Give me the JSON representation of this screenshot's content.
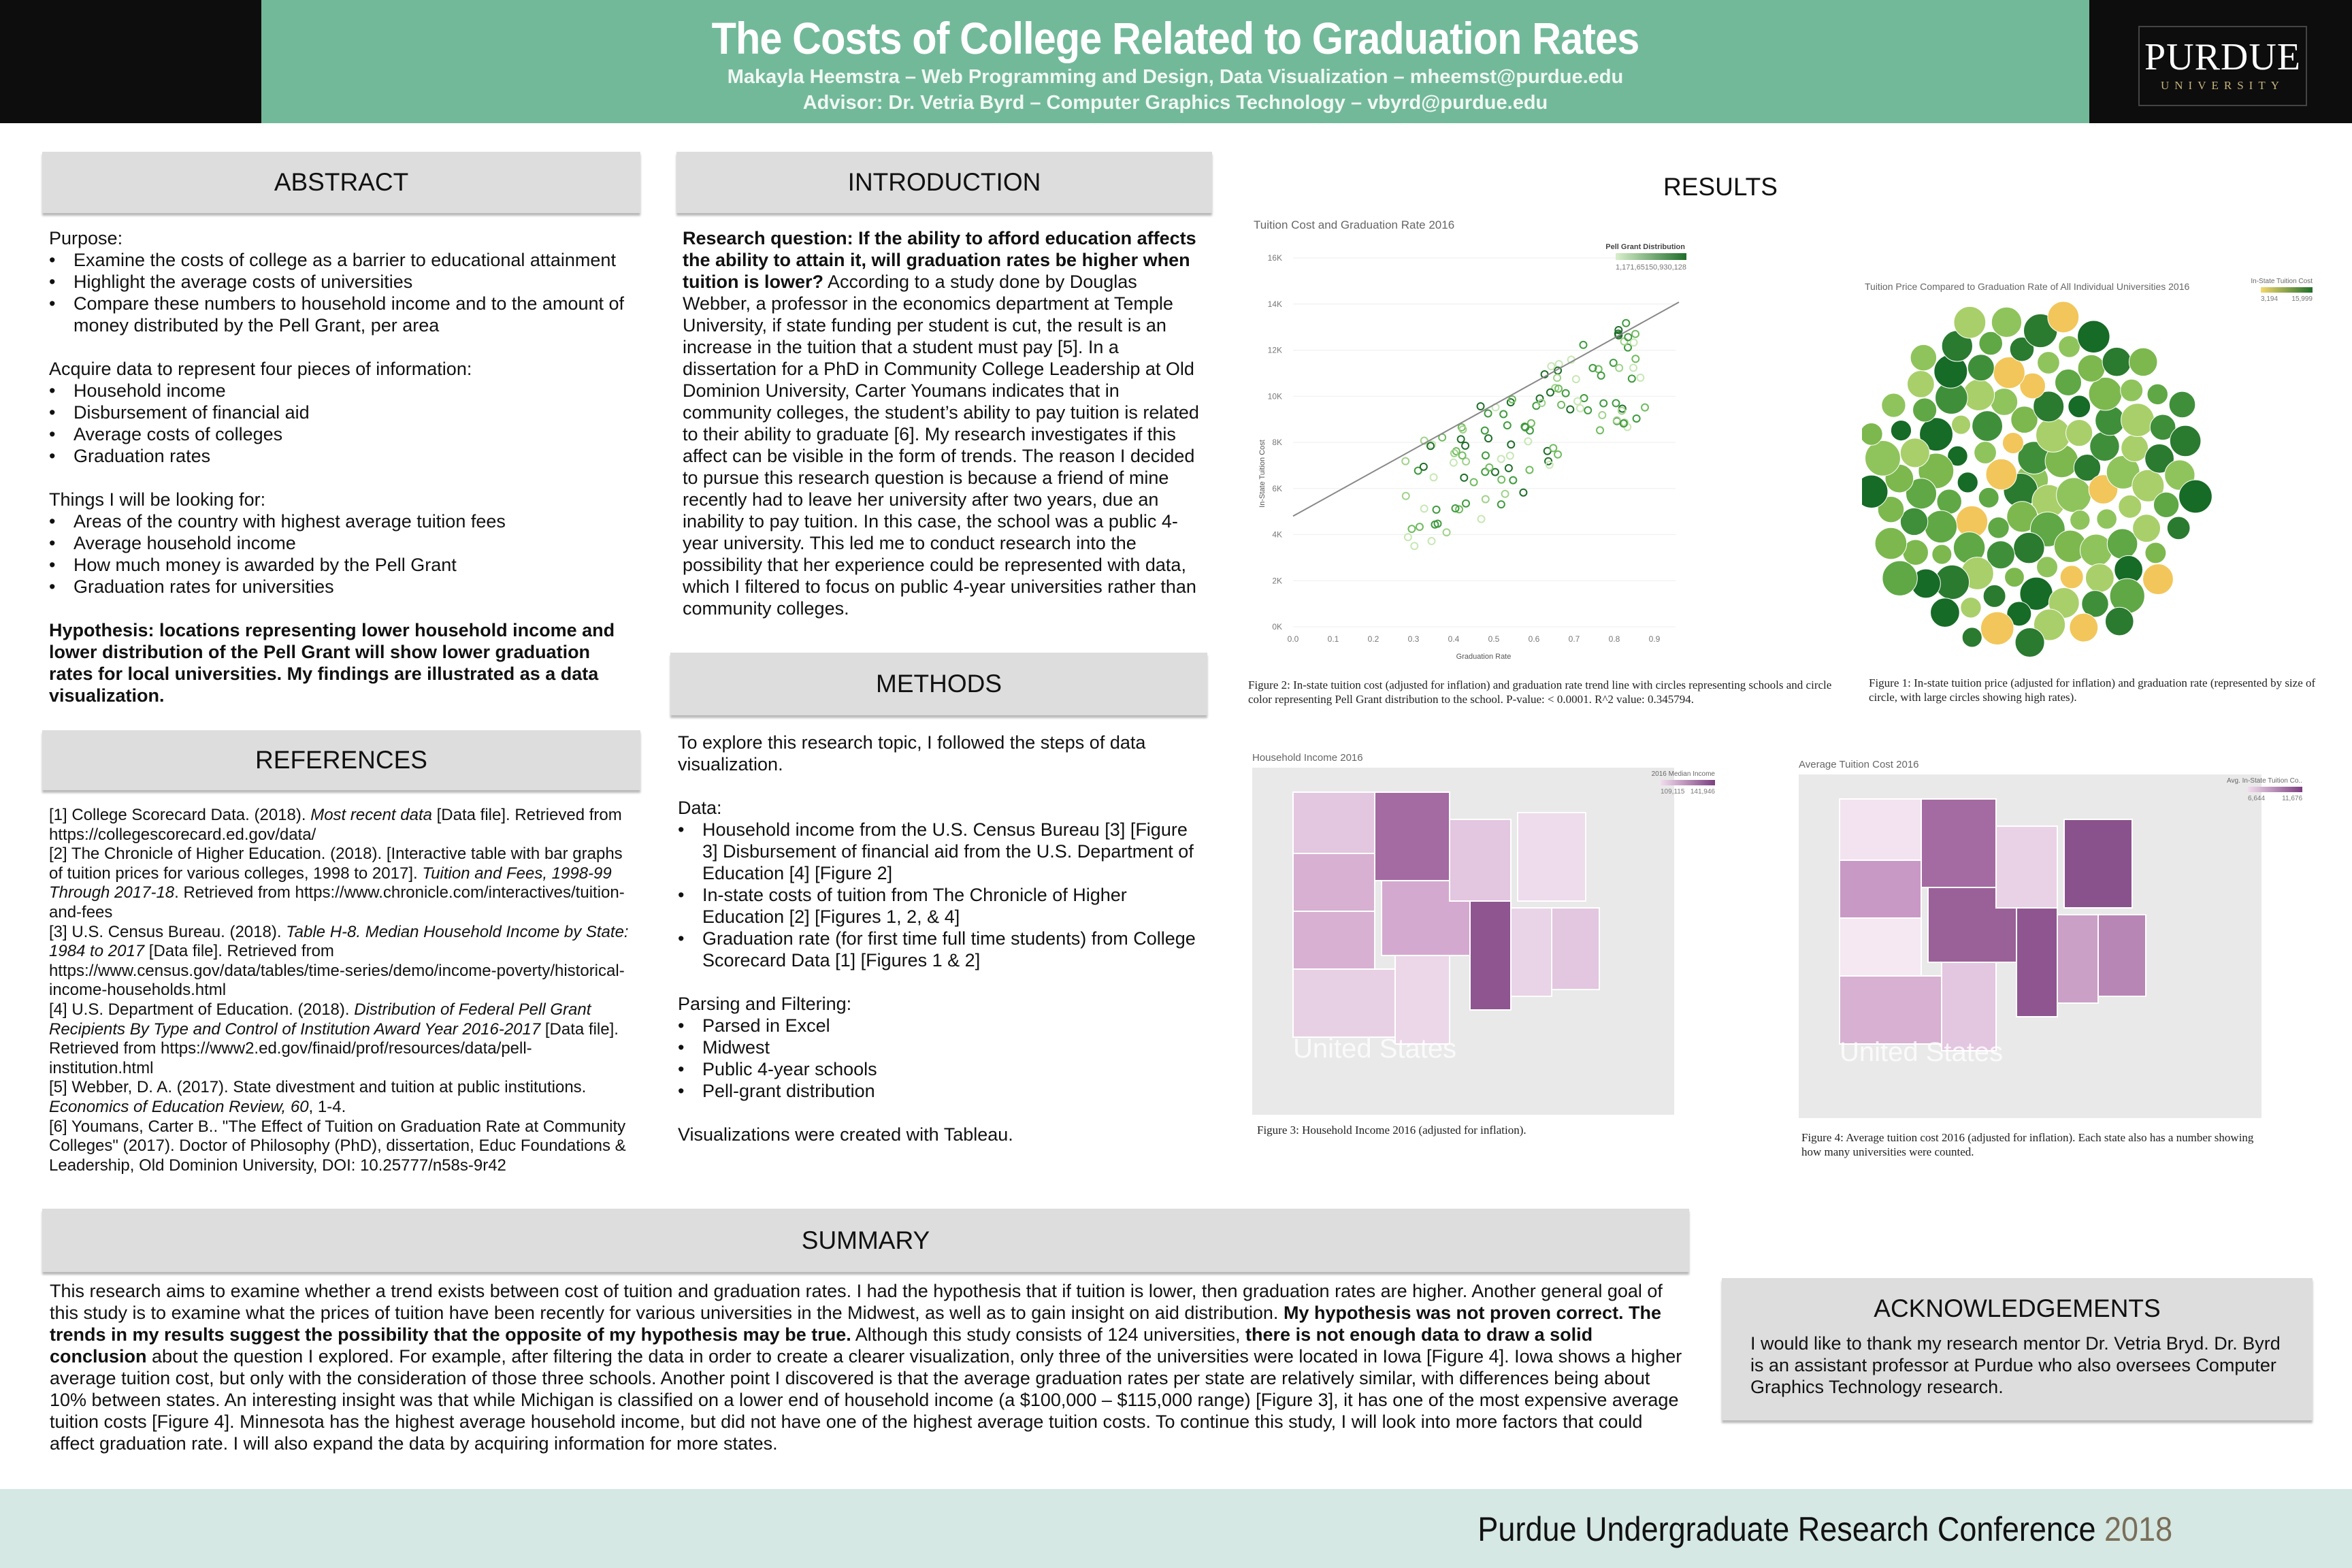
{
  "header": {
    "title": "The Costs of College Related to Graduation Rates",
    "authors": "Makayla Heemstra – Web Programming and Design, Data Visualization – mheemst@purdue.edu",
    "advisor": "Advisor: Dr. Vetria Byrd  – Computer Graphics Technology – vbyrd@purdue.edu",
    "logo": "PURDUE",
    "logo_sub": "UNIVERSITY"
  },
  "abstract": {
    "heading": "ABSTRACT",
    "purpose": {
      "label": "Purpose:",
      "items": [
        "Examine the costs of college as a barrier to educational attainment",
        "Highlight the average costs of universities",
        "Compare these numbers to household income and to the amount of money distributed by the Pell Grant, per area"
      ]
    },
    "acquire": {
      "label": "Acquire data to represent four pieces of information:",
      "items": [
        "Household income",
        "Disbursement of financial aid",
        "Average costs of colleges",
        "Graduation rates"
      ]
    },
    "looking": {
      "label": "Things I will be looking for:",
      "items": [
        "Areas of the country with highest average tuition fees",
        "Average household income",
        "How much money is awarded by the Pell Grant",
        "Graduation rates for universities"
      ]
    },
    "hypothesis": "Hypothesis: locations representing lower household income and lower distribution of the Pell Grant will show lower graduation rates for local universities. My findings are illustrated as a data visualization."
  },
  "introduction": {
    "heading": "INTRODUCTION",
    "question": "Research question: If the ability to afford education affects the ability to attain it, will graduation rates be higher when tuition is lower?",
    "body": " According to a study done by Douglas Webber, a professor in the economics department at Temple University, if state funding per student is cut, the result is an increase in the tuition that a student must pay [5]. In a dissertation for a PhD in Community College Leadership at Old Dominion University, Carter Youmans indicates that in community colleges, the student’s ability to pay tuition is related to their ability to graduate [6]. My research investigates if this affect can be visible in the form of trends. The reason I decided to pursue this research question is because a friend of mine recently had to leave her university after two years, due an inability to pay tuition. In this case, the school was a public 4-year university. This led me to conduct research into the possibility that her experience could be represented with data, which I filtered to focus on public 4-year universities rather than community colleges."
  },
  "references": {
    "heading": "REFERENCES",
    "items": [
      [
        "[1] College Scorecard Data. (2018). ",
        "Most recent data",
        " [Data file]. Retrieved from https://collegescorecard.ed.gov/data/"
      ],
      [
        "[2] The Chronicle of Higher Education. (2018). [Interactive table with bar graphs of tuition prices for various colleges, 1998 to 2017]. ",
        "Tuition and Fees, 1998-99 Through 2017-18",
        ". Retrieved from https://www.chronicle.com/interactives/tuition-and-fees"
      ],
      [
        "[3] U.S. Census Bureau. (2018). ",
        "Table H-8.  Median Household Income by State: 1984 to 2017",
        " [Data file]. Retrieved from https://www.census.gov/data/tables/time-series/demo/income-poverty/historical-income-households.html"
      ],
      [
        "[4] U.S. Department of Education. (2018). ",
        "Distribution of Federal Pell Grant Recipients By Type and Control of Institution Award Year 2016-2017",
        " [Data file]. Retrieved from https://www2.ed.gov/finaid/prof/resources/data/pell-institution.html"
      ],
      [
        "[5] Webber, D. A. (2017). State divestment and tuition at public institutions. ",
        "Economics of Education Review, 60",
        ", 1-4."
      ],
      [
        "[6] Youmans, Carter B.. \"The Effect of Tuition on Graduation Rate at Community Colleges\" (2017). Doctor of Philosophy (PhD), dissertation, Educ Foundations & Leadership, Old Dominion University, DOI: 10.25777/n58s-9r42"
      ]
    ]
  },
  "methods": {
    "heading": "METHODS",
    "intro": "To explore this research topic, I followed the steps of data visualization.",
    "data": {
      "label": "Data:",
      "items": [
        "Household income from the U.S. Census Bureau [3] [Figure 3] Disbursement of financial aid from the U.S. Department of Education [4] [Figure 2]",
        "In-state costs of tuition from The Chronicle of Higher Education [2] [Figures 1, 2, & 4]",
        "Graduation rate (for first time full time students) from College Scorecard Data [1] [Figures 1 & 2]"
      ]
    },
    "parsing": {
      "label": "Parsing and Filtering:",
      "items": [
        "Parsed in Excel",
        "Midwest",
        "Public 4-year schools",
        "Pell-grant distribution"
      ]
    },
    "closing": "Visualizations were created with Tableau."
  },
  "results": {
    "heading": "RESULTS",
    "figure2": {
      "title": "Tuition Cost and Graduation Rate 2016",
      "x_label": "Graduation Rate",
      "y_label": "In-State Tuition Cost",
      "xticks": [
        "0.0",
        "0.1",
        "0.2",
        "0.3",
        "0.4",
        "0.5",
        "0.6",
        "0.7",
        "0.8",
        "0.9"
      ],
      "yticks": [
        "16K",
        "14K",
        "12K",
        "10K",
        "8K",
        "6K",
        "4K",
        "2K",
        "0K"
      ],
      "legend_title": "Pell Grant Distribution",
      "legend_min": "1,171,651",
      "legend_max": "50,930,128",
      "caption": "Figure 2: In-state tuition cost (adjusted for inflation) and graduation rate trend line with circles representing schools and circle color representing Pell Grant distribution to the school. P-value: < 0.0001. R^2 value: 0.345794."
    },
    "figure1": {
      "title": "Tuition Price Compared to Graduation Rate of All Individual Universities 2016",
      "legend_title": "In-State Tuition Cost",
      "legend_min": "3,194",
      "legend_max": "15,999",
      "caption": "Figure 1: In-state tuition price (adjusted for inflation) and graduation rate (represented by size of circle, with large circles showing high rates)."
    },
    "figure3": {
      "title": "Household Income 2016",
      "legend_title": "2016 Median Income",
      "legend_min": "109,115",
      "legend_max": "141,946",
      "watermark": "United States",
      "caption": "Figure 3: Household Income 2016 (adjusted for inflation)."
    },
    "figure4": {
      "title": "Average Tuition Cost 2016",
      "legend_title": "Avg. In-State Tuition Co..",
      "legend_min": "6,644",
      "legend_max": "11,676",
      "watermark": "United States",
      "caption": "Figure 4: Average tuition cost 2016 (adjusted for inflation). Each state also has a number showing how many universities  were counted."
    }
  },
  "summary": {
    "heading": "SUMMARY",
    "runs": [
      "This research aims to examine whether a trend exists between cost of tuition and graduation rates. I had the hypothesis that if tuition is lower, then graduation rates are higher. Another general goal of this study is to examine what the prices of tuition have been recently for various universities in the Midwest, as well as to gain insight on aid distribution. ",
      "My hypothesis was not proven correct. The trends in my results suggest the possibility that the opposite of my hypothesis may be true.",
      " Although this study consists of 124 universities, ",
      "there is not enough data to draw a solid conclusion",
      " about the question I explored. For example, after filtering the data in order to create a clearer visualization, only three of the universities were located in Iowa [Figure 4]. Iowa shows a higher average tuition cost, but only with the consideration of those three schools. Another point I discovered is that the average graduation rates per state are relatively similar, with differences being about 10% between states. An interesting insight was that while Michigan is classified on a lower end of household income (a $100,000 – $115,000 range) [Figure 3], it has one of the most expensive average tuition costs [Figure 4]. Minnesota has the highest average household income, but did not have one of the highest average tuition costs. To continue this study, I will look into more factors that could affect graduation rate. I will also expand the data by acquiring information for more states."
    ]
  },
  "acknowledgements": {
    "heading": "ACKNOWLEDGEMENTS",
    "body": "I would like to thank my research mentor Dr. Vetria Bryd. Dr. Byrd is an assistant professor at Purdue who also oversees Computer Graphics Technology research."
  },
  "footer": {
    "conference": "Purdue Undergraduate Research Conference",
    "year": "2018"
  }
}
